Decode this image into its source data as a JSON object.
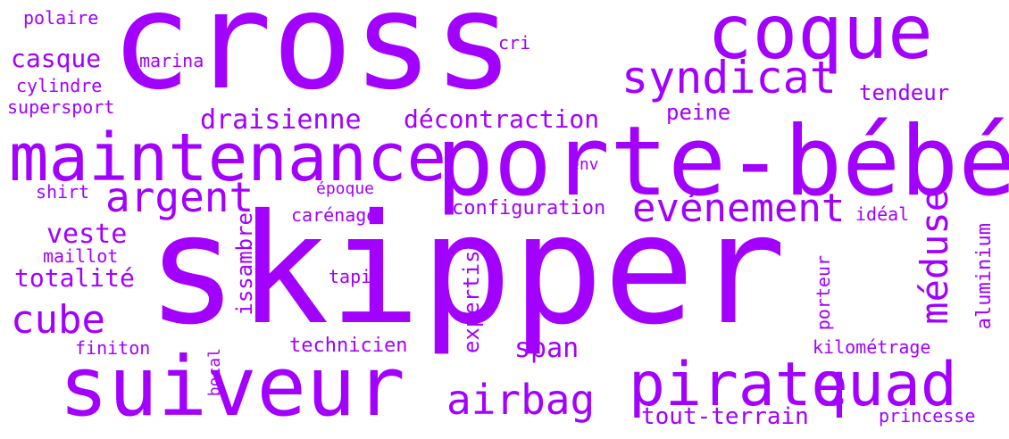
{
  "color": "#a200ff",
  "background": "#ffffff",
  "words": [
    "cross",
    "skipper",
    "porte-bébé",
    "coque",
    "maintenance",
    "suiveur",
    "pirate",
    "quad",
    "syndicat",
    "argent",
    "evénement",
    "airbag",
    "cube",
    "méduse",
    "draisienne",
    "décontraction",
    "veste",
    "totalité",
    "casque",
    "marina",
    "tendeur",
    "peine",
    "configuration",
    "carénage",
    "époque",
    "technicien",
    "span",
    "expertise",
    "issambre",
    "aluminium",
    "porteur",
    "kilométrage",
    "tout-terrain",
    "princesse",
    "maillot",
    "shirt",
    "finiton",
    "bocal",
    "tapis",
    "idéal",
    "env",
    "cri",
    "polaire",
    "cylindre",
    "supersport"
  ]
}
